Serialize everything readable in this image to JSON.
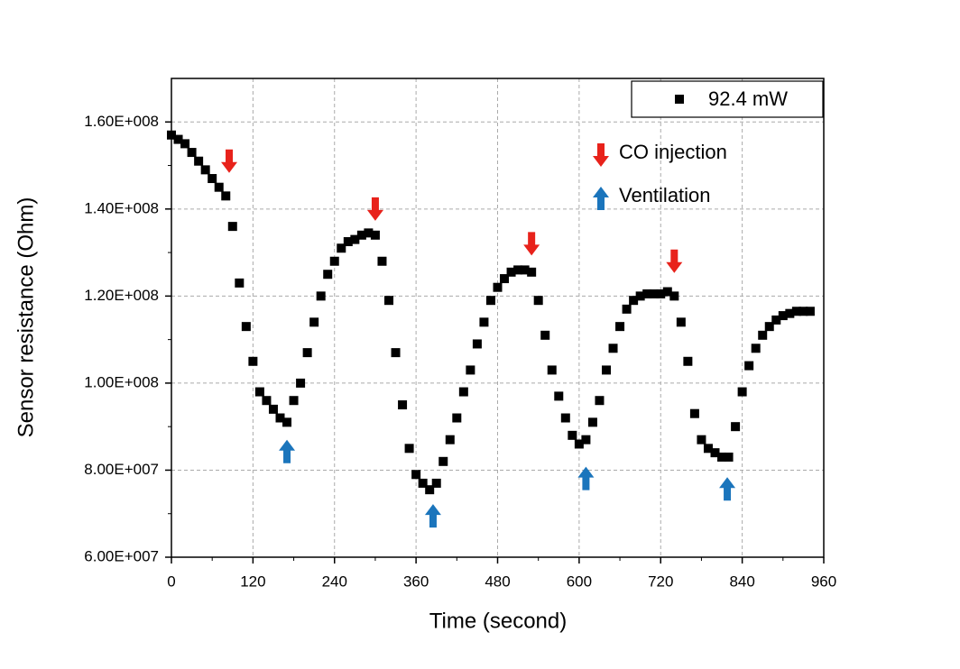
{
  "chart_data": {
    "type": "scatter",
    "x_label": "Time (second)",
    "y_label": "Sensor resistance (Ohm)",
    "xlim": [
      0,
      960
    ],
    "xticks": [
      0,
      120,
      240,
      360,
      480,
      600,
      720,
      840,
      960
    ],
    "ylim": [
      60000000.0,
      170000000.0
    ],
    "yticks": [
      {
        "value": 60000000.0,
        "label": "6.00E+007"
      },
      {
        "value": 80000000.0,
        "label": "8.00E+007"
      },
      {
        "value": 100000000.0,
        "label": "1.00E+008"
      },
      {
        "value": 120000000.0,
        "label": "1.20E+008"
      },
      {
        "value": 140000000.0,
        "label": "1.40E+008"
      },
      {
        "value": 160000000.0,
        "label": "1.60E+008"
      }
    ],
    "grid": true,
    "legend": "upper right",
    "series": [
      {
        "name": "92.4 mW",
        "color": "#000000",
        "x": [
          0,
          10,
          20,
          30,
          40,
          50,
          60,
          70,
          80,
          90,
          100,
          110,
          120,
          130,
          140,
          150,
          160,
          170,
          180,
          190,
          200,
          210,
          220,
          230,
          240,
          250,
          260,
          270,
          280,
          290,
          300,
          310,
          320,
          330,
          340,
          350,
          360,
          370,
          380,
          390,
          400,
          410,
          420,
          430,
          440,
          450,
          460,
          470,
          480,
          490,
          500,
          510,
          520,
          530,
          540,
          550,
          560,
          570,
          580,
          590,
          600,
          610,
          620,
          630,
          640,
          650,
          660,
          670,
          680,
          690,
          700,
          710,
          720,
          730,
          740,
          750,
          760,
          770,
          780,
          790,
          800,
          810,
          820,
          830,
          840,
          850,
          860,
          870,
          880,
          890,
          900,
          910,
          920,
          930,
          940
        ],
        "values": [
          157000000.0,
          156000000.0,
          155000000.0,
          153000000.0,
          151000000.0,
          149000000.0,
          147000000.0,
          145000000.0,
          143000000.0,
          136000000.0,
          123000000.0,
          113000000.0,
          105000000.0,
          98000000.0,
          96000000.0,
          94000000.0,
          92000000.0,
          91000000.0,
          96000000.0,
          100000000.0,
          107000000.0,
          114000000.0,
          120000000.0,
          125000000.0,
          128000000.0,
          131000000.0,
          132500000.0,
          133000000.0,
          134000000.0,
          134500000.0,
          134000000.0,
          128000000.0,
          119000000.0,
          107000000.0,
          95000000.0,
          85000000.0,
          79000000.0,
          77000000.0,
          75500000.0,
          77000000.0,
          82000000.0,
          87000000.0,
          92000000.0,
          98000000.0,
          103000000.0,
          109000000.0,
          114000000.0,
          119000000.0,
          122000000.0,
          124000000.0,
          125500000.0,
          126000000.0,
          126000000.0,
          125500000.0,
          119000000.0,
          111000000.0,
          103000000.0,
          97000000.0,
          92000000.0,
          88000000.0,
          86000000.0,
          87000000.0,
          91000000.0,
          96000000.0,
          103000000.0,
          108000000.0,
          113000000.0,
          117000000.0,
          119000000.0,
          120000000.0,
          120500000.0,
          120500000.0,
          120500000.0,
          121000000.0,
          120000000.0,
          114000000.0,
          105000000.0,
          93000000.0,
          87000000.0,
          85000000.0,
          84000000.0,
          83000000.0,
          83000000.0,
          90000000.0,
          98000000.0,
          104000000.0,
          108000000.0,
          111000000.0,
          113000000.0,
          114500000.0,
          115500000.0,
          116000000.0,
          116500000.0,
          116500000.0,
          116500000.0
        ]
      }
    ],
    "annotations": [
      {
        "label": "CO injection",
        "color": "#e8221b",
        "direction": "down",
        "x": [
          85,
          300,
          530,
          740
        ],
        "y": [
          151000000.0,
          140000000.0,
          132000000.0,
          128000000.0
        ]
      },
      {
        "label": "Ventilation",
        "color": "#1b75bc",
        "direction": "up",
        "x": [
          170,
          385,
          610,
          818
        ],
        "y": [
          84300000.0,
          69500000.0,
          78100000.0,
          75700000.0
        ]
      }
    ]
  }
}
